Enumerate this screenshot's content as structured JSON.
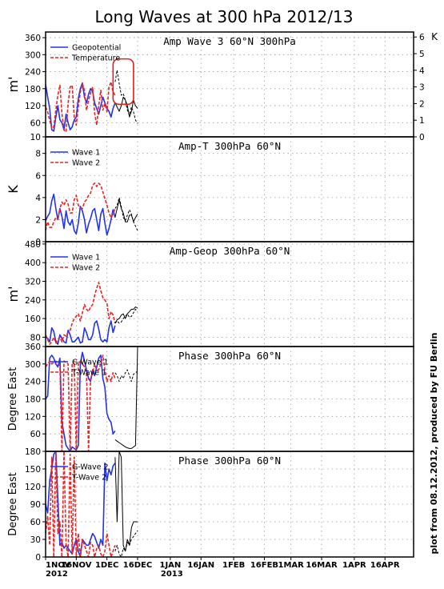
{
  "title": "Long Waves at 300 hPa 2012/13",
  "credit": "plot from 08.12.2012, produced by FU Berlin",
  "x_axis": {
    "ticks": [
      {
        "date": "2012-11-01",
        "label": "1NOV",
        "sub": "2012"
      },
      {
        "date": "2012-11-16",
        "label": "16NOV"
      },
      {
        "date": "2012-12-01",
        "label": "1DEC"
      },
      {
        "date": "2012-12-16",
        "label": "16DEC"
      },
      {
        "date": "2013-01-01",
        "label": "1JAN",
        "sub": "2013"
      },
      {
        "date": "2013-01-16",
        "label": "16JAN"
      },
      {
        "date": "2013-02-01",
        "label": "1FEB"
      },
      {
        "date": "2013-02-16",
        "label": "16FEB"
      },
      {
        "date": "2013-03-01",
        "label": "1MAR"
      },
      {
        "date": "2013-03-16",
        "label": "16MAR"
      },
      {
        "date": "2013-04-01",
        "label": "1APR"
      },
      {
        "date": "2013-04-16",
        "label": "16APR"
      }
    ],
    "range": [
      "2012-11-01",
      "2013-04-30"
    ]
  },
  "colors": {
    "blue": "#2233ee",
    "red": "#ee2222",
    "black": "#000000",
    "grid": "#a0a0a0",
    "highlight": "#dd2222"
  },
  "chart_data": [
    {
      "type": "line",
      "title": "Amp Wave 3 60°N 300hPa",
      "ylabel": "m'",
      "ylim": [
        10,
        380
      ],
      "yticks": [
        10,
        60,
        120,
        180,
        240,
        300,
        360
      ],
      "ylabel_right": "K",
      "ylim_right": [
        0,
        6.3
      ],
      "yticks_right": [
        0,
        1,
        2,
        3,
        4,
        5,
        6
      ],
      "legend": [
        "Geopotential",
        "Temperature"
      ],
      "legend_position": "top-left",
      "highlight_box": {
        "x_range": [
          "2012-12-04",
          "2012-12-14"
        ],
        "y_range": [
          125,
          285
        ]
      },
      "series": [
        {
          "name": "Geopotential",
          "color": "#2233ee",
          "style": "solid",
          "axis": "left",
          "x_start": "2012-11-01",
          "values": [
            195,
            150,
            110,
            35,
            30,
            80,
            120,
            70,
            60,
            35,
            90,
            60,
            35,
            45,
            70,
            80,
            145,
            180,
            200,
            150,
            130,
            160,
            180,
            170,
            130,
            110,
            90,
            120,
            150,
            130,
            110,
            100,
            80,
            110,
            130
          ]
        },
        {
          "name": "Temperature",
          "color": "#ee2222",
          "style": "dashed",
          "axis": "right",
          "x_start": "2012-11-01",
          "values": [
            1.8,
            1.5,
            1.0,
            0.5,
            0.6,
            1.6,
            2.5,
            3.1,
            1.4,
            0.4,
            0.3,
            2.0,
            3.0,
            3.1,
            1.2,
            0.7,
            1.8,
            2.7,
            3.2,
            2.8,
            1.6,
            2.2,
            2.6,
            3.0,
            1.4,
            0.7,
            1.9,
            2.8,
            1.6,
            2.0,
            1.5,
            3.0,
            3.3,
            2.7,
            2.5
          ]
        },
        {
          "name": "",
          "color": "#000000",
          "style": "solid",
          "axis": "left",
          "x_start": "2012-12-05",
          "values": [
            130,
            115,
            100,
            120,
            150,
            140,
            120,
            80,
            100,
            140,
            120,
            110
          ]
        },
        {
          "name": "",
          "color": "#000000",
          "style": "dashed",
          "axis": "right",
          "x_start": "2012-12-05",
          "values": [
            3.3,
            4.0,
            3.2,
            2.5,
            2.6,
            2.2,
            1.6,
            1.3,
            1.8,
            1.5,
            1.0,
            0.8
          ]
        }
      ]
    },
    {
      "type": "line",
      "title": "Amp-T 300hPa 60°N",
      "ylabel": "K",
      "ylim": [
        0,
        9.5
      ],
      "yticks": [
        0,
        2,
        4,
        6,
        8
      ],
      "legend": [
        "Wave 1",
        "Wave 2"
      ],
      "legend_position": "top-left",
      "series": [
        {
          "name": "Wave 1",
          "color": "#2233ee",
          "style": "solid",
          "x_start": "2012-11-01",
          "values": [
            1.9,
            2.3,
            2.6,
            3.7,
            4.3,
            3.0,
            2.0,
            3.0,
            2.3,
            1.2,
            2.8,
            1.8,
            1.5,
            2.0,
            1.0,
            0.7,
            1.7,
            3.2,
            2.8,
            2.0,
            0.8,
            1.6,
            2.1,
            2.8,
            3.0,
            2.0,
            1.0,
            2.5,
            3.0,
            1.7,
            0.6,
            1.2,
            2.0,
            2.9,
            2.2
          ]
        },
        {
          "name": "Wave 2",
          "color": "#ee2222",
          "style": "dashed",
          "x_start": "2012-11-01",
          "values": [
            1.0,
            1.8,
            1.3,
            1.3,
            1.8,
            2.2,
            2.0,
            3.0,
            3.6,
            3.3,
            3.8,
            3.4,
            2.6,
            2.6,
            3.8,
            4.2,
            3.3,
            3.1,
            3.0,
            3.6,
            3.8,
            4.2,
            4.4,
            5.1,
            5.3,
            5.0,
            5.3,
            5.1,
            4.5,
            3.9,
            3.3,
            2.6,
            2.2,
            2.5,
            3.0
          ]
        },
        {
          "name": "",
          "color": "#000000",
          "style": "solid",
          "x_start": "2012-12-05",
          "values": [
            2.2,
            3.0,
            3.8,
            3.0,
            2.6,
            1.8,
            1.8,
            2.4,
            2.4,
            1.8,
            2.2,
            2.5
          ]
        },
        {
          "name": "",
          "color": "#000000",
          "style": "dashed",
          "x_start": "2012-12-05",
          "values": [
            3.0,
            3.3,
            4.0,
            3.2,
            2.2,
            1.9,
            2.4,
            2.9,
            2.5,
            1.8,
            1.4,
            1.0
          ]
        }
      ]
    },
    {
      "type": "line",
      "title": "Amp-Geop 300hPa 60°N",
      "ylabel": "m'",
      "ylim": [
        40,
        490
      ],
      "yticks": [
        80,
        160,
        240,
        320,
        400,
        480
      ],
      "legend": [
        "Wave 1",
        "Wave 2"
      ],
      "legend_position": "top-left",
      "series": [
        {
          "name": "Wave 1",
          "color": "#2233ee",
          "style": "solid",
          "x_start": "2012-11-01",
          "values": [
            80,
            75,
            60,
            120,
            105,
            60,
            50,
            90,
            75,
            60,
            55,
            110,
            90,
            60,
            60,
            70,
            80,
            55,
            60,
            120,
            100,
            70,
            70,
            90,
            140,
            150,
            115,
            70,
            60,
            70,
            60,
            120,
            150,
            100,
            130
          ]
        },
        {
          "name": "Wave 2",
          "color": "#ee2222",
          "style": "dashed",
          "x_start": "2012-11-01",
          "values": [
            90,
            70,
            50,
            60,
            80,
            55,
            70,
            80,
            60,
            90,
            85,
            100,
            110,
            140,
            160,
            170,
            180,
            150,
            185,
            220,
            200,
            190,
            210,
            220,
            260,
            290,
            315,
            280,
            250,
            240,
            225,
            160,
            190,
            175,
            140
          ]
        },
        {
          "name": "",
          "color": "#000000",
          "style": "solid",
          "x_start": "2012-12-05",
          "values": [
            140,
            155,
            160,
            175,
            180,
            160,
            180,
            190,
            200,
            200,
            210,
            205
          ]
        },
        {
          "name": "",
          "color": "#000000",
          "style": "dashed",
          "x_start": "2012-12-05",
          "values": [
            140,
            150,
            140,
            145,
            160,
            170,
            180,
            165,
            170,
            185,
            200,
            190
          ]
        }
      ]
    },
    {
      "type": "line",
      "title": "Phase 300hPa 60°N",
      "ylabel": "Degree East",
      "ylim": [
        0,
        360
      ],
      "yticks": [
        60,
        120,
        180,
        240,
        300,
        360
      ],
      "legend": [
        "G-Wave 1",
        "T-Wave 1"
      ],
      "legend_position": "top-left",
      "series": [
        {
          "name": "G-Wave 1",
          "color": "#2233ee",
          "style": "solid",
          "x_start": "2012-11-01",
          "values": [
            180,
            190,
            320,
            330,
            320,
            300,
            290,
            320,
            100,
            60,
            20,
            10,
            0,
            15,
            10,
            5,
            20,
            300,
            340,
            310,
            280,
            250,
            240,
            280,
            260,
            290,
            320,
            330,
            250,
            220,
            130,
            110,
            100,
            60,
            70
          ]
        },
        {
          "name": "T-Wave 1",
          "color": "#ee2222",
          "style": "dashed",
          "x_start": "2012-11-01",
          "values": [
            290,
            300,
            310,
            300,
            305,
            310,
            300,
            295,
            0,
            310,
            305,
            300,
            0,
            300,
            310,
            0,
            300,
            310,
            300,
            290,
            270,
            0,
            250,
            270,
            300,
            280,
            280,
            300,
            330,
            280,
            240,
            260,
            240,
            270,
            250
          ]
        },
        {
          "name": "",
          "color": "#000000",
          "style": "solid",
          "x_start": "2012-12-05",
          "values": [
            40,
            35,
            30,
            25,
            20,
            15,
            12,
            10,
            10,
            15,
            20,
            360
          ]
        },
        {
          "name": "",
          "color": "#000000",
          "style": "dashed",
          "x_start": "2012-12-05",
          "values": [
            270,
            260,
            240,
            260,
            250,
            270,
            280,
            260,
            240,
            265,
            270,
            275
          ]
        }
      ]
    },
    {
      "type": "line",
      "title": "Phase 300hPa 60°N",
      "ylabel": "Degree East",
      "ylim": [
        0,
        180
      ],
      "yticks": [
        0,
        30,
        60,
        90,
        120,
        150,
        180
      ],
      "legend": [
        "G-Wave 2",
        "T-Wave 2"
      ],
      "legend_position": "top-left",
      "series": [
        {
          "name": "G-Wave 2",
          "color": "#2233ee",
          "style": "solid",
          "x_start": "2012-11-01",
          "values": [
            90,
            75,
            130,
            150,
            175,
            180,
            100,
            20,
            25,
            15,
            20,
            15,
            10,
            5,
            20,
            30,
            10,
            0,
            30,
            25,
            20,
            20,
            30,
            40,
            35,
            25,
            15,
            30,
            20,
            160,
            130,
            150,
            140,
            155,
            160
          ]
        },
        {
          "name": "T-Wave 2",
          "color": "#ee2222",
          "style": "dashed",
          "x_start": "2012-11-01",
          "values": [
            40,
            70,
            20,
            170,
            0,
            180,
            40,
            60,
            0,
            180,
            20,
            0,
            175,
            5,
            170,
            0,
            40,
            0,
            30,
            20,
            10,
            0,
            25,
            20,
            0,
            15,
            20,
            5,
            0,
            10,
            40,
            20,
            0,
            10,
            20
          ]
        },
        {
          "name": "",
          "color": "#000000",
          "style": "solid",
          "x_start": "2012-12-05",
          "values": [
            170,
            60,
            180,
            170,
            20,
            10,
            30,
            20,
            50,
            60,
            60,
            60
          ]
        },
        {
          "name": "",
          "color": "#000000",
          "style": "dashed",
          "x_start": "2012-12-05",
          "values": [
            10,
            20,
            5,
            0,
            15,
            10,
            25,
            20,
            30,
            35,
            40,
            45
          ]
        }
      ]
    }
  ]
}
